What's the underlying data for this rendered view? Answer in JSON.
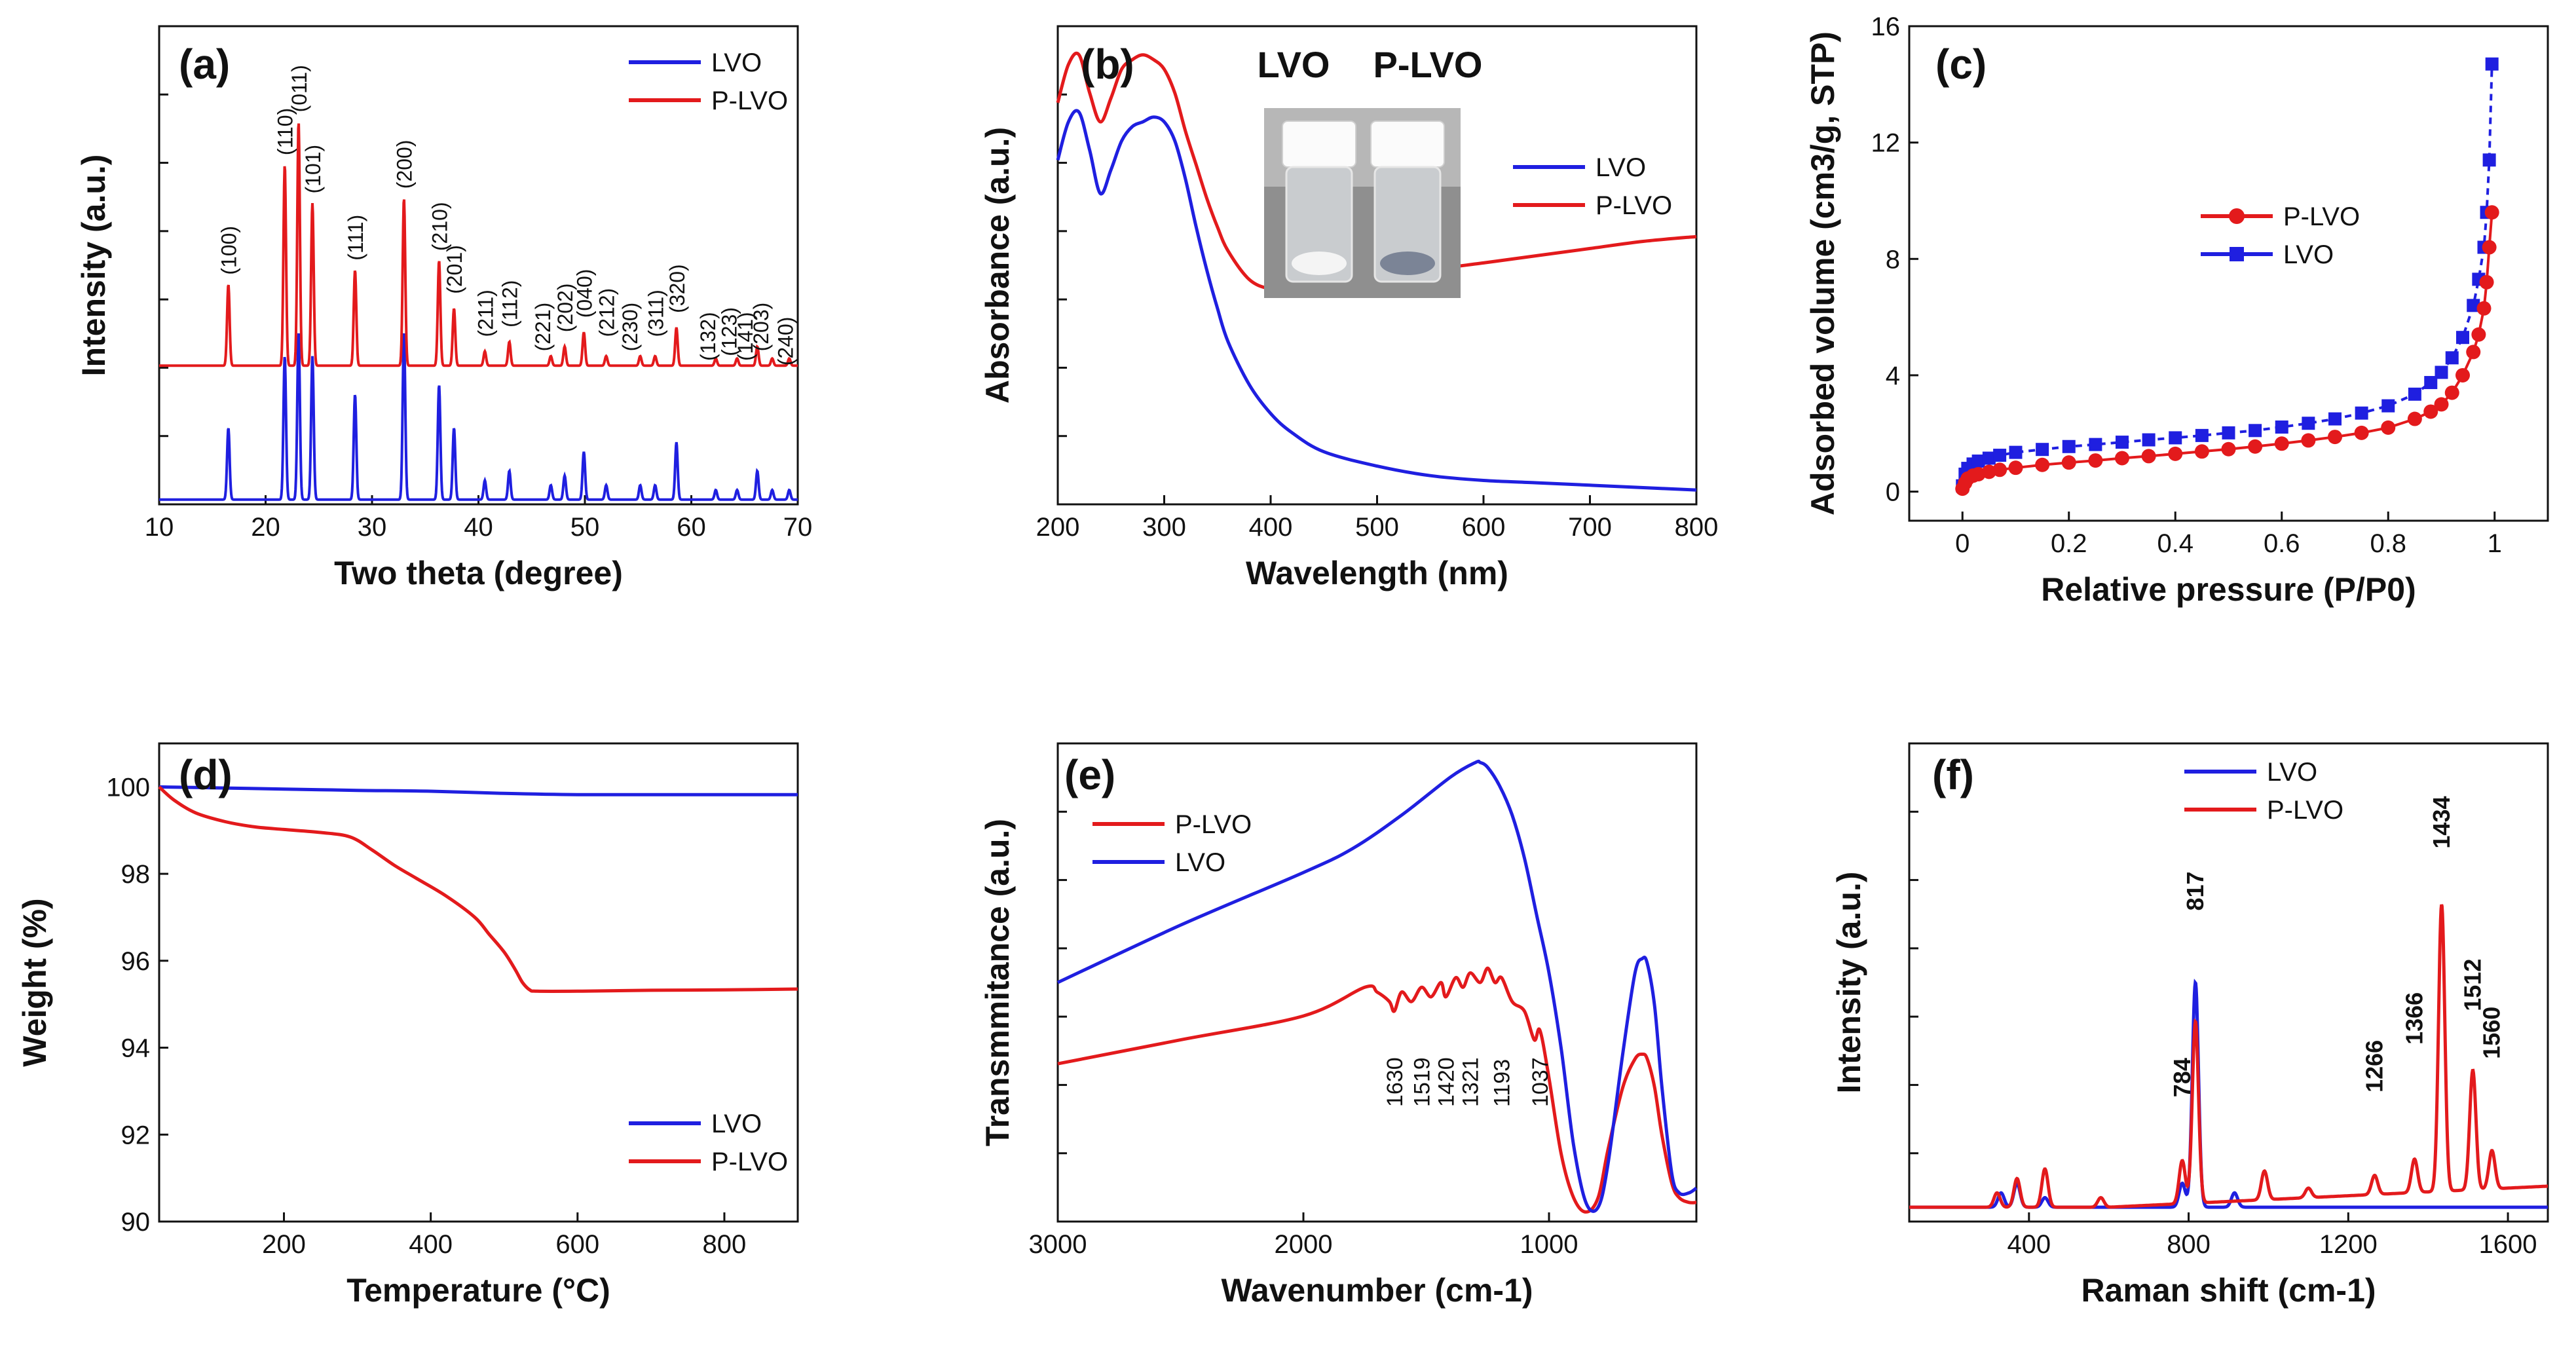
{
  "figure": {
    "panels": [
      {
        "id": "a",
        "label": "(a)"
      },
      {
        "id": "b",
        "label": "(b)"
      },
      {
        "id": "c",
        "label": "(c)"
      },
      {
        "id": "d",
        "label": "(d)"
      },
      {
        "id": "e",
        "label": "(e)"
      },
      {
        "id": "f",
        "label": "(f)"
      }
    ],
    "photo_labels": [
      "LVO",
      "P-LVO"
    ]
  },
  "colors": {
    "LVO": "#1f1fe0",
    "P-LVO": "#e31a1c",
    "axis": "#111111"
  },
  "chart_data": [
    {
      "id": "a",
      "type": "line",
      "title": "",
      "xlabel": "Two theta (degree)",
      "ylabel": "Intensity (a.u.)",
      "xlim": [
        10,
        70
      ],
      "ylim": [
        0,
        100
      ],
      "xticks": [
        10,
        20,
        30,
        40,
        50,
        60,
        70
      ],
      "yticks": [],
      "legend": "top-right",
      "series": [
        {
          "name": "LVO",
          "color": "#1f1fe0",
          "baseline": 1,
          "peaks": [
            [
              16.5,
              15
            ],
            [
              21.8,
              30
            ],
            [
              23.1,
              35
            ],
            [
              24.4,
              30
            ],
            [
              28.4,
              22
            ],
            [
              33.0,
              35
            ],
            [
              36.3,
              24
            ],
            [
              37.7,
              15
            ],
            [
              40.6,
              4
            ],
            [
              42.9,
              6
            ],
            [
              46.8,
              3
            ],
            [
              48.1,
              5
            ],
            [
              49.9,
              10
            ],
            [
              52.0,
              3
            ],
            [
              55.2,
              3
            ],
            [
              56.6,
              3
            ],
            [
              58.6,
              12
            ],
            [
              62.3,
              2
            ],
            [
              64.3,
              2
            ],
            [
              66.2,
              6
            ],
            [
              67.6,
              2
            ],
            [
              69.2,
              2
            ]
          ]
        },
        {
          "name": "P-LVO",
          "color": "#e31a1c",
          "baseline": 29,
          "peaks": [
            [
              16.5,
              17
            ],
            [
              21.8,
              42
            ],
            [
              23.1,
              51
            ],
            [
              24.4,
              34
            ],
            [
              28.4,
              20
            ],
            [
              33.0,
              35
            ],
            [
              36.3,
              22
            ],
            [
              37.7,
              12
            ],
            [
              40.6,
              3
            ],
            [
              42.9,
              5
            ],
            [
              46.8,
              2
            ],
            [
              48.1,
              4
            ],
            [
              49.9,
              7
            ],
            [
              52.0,
              2
            ],
            [
              55.2,
              2
            ],
            [
              56.6,
              2
            ],
            [
              58.6,
              8
            ],
            [
              62.3,
              1.5
            ],
            [
              64.3,
              1.5
            ],
            [
              66.2,
              4
            ],
            [
              67.6,
              1.5
            ],
            [
              69.2,
              1.5
            ]
          ]
        }
      ],
      "annotations": [
        {
          "text": "(100)",
          "x": 16.5,
          "y": 48
        },
        {
          "text": "(110)",
          "x": 21.8,
          "y": 73
        },
        {
          "text": "(011)",
          "x": 23.1,
          "y": 82
        },
        {
          "text": "(101)",
          "x": 24.4,
          "y": 65
        },
        {
          "text": "(111)",
          "x": 28.4,
          "y": 51
        },
        {
          "text": "(200)",
          "x": 33.0,
          "y": 66
        },
        {
          "text": "(210)",
          "x": 36.3,
          "y": 53
        },
        {
          "text": "(201)",
          "x": 37.7,
          "y": 44
        },
        {
          "text": "(211)",
          "x": 40.6,
          "y": 35
        },
        {
          "text": "(112)",
          "x": 42.9,
          "y": 37
        },
        {
          "text": "(221)",
          "x": 46.0,
          "y": 32
        },
        {
          "text": "(202)",
          "x": 48.1,
          "y": 36
        },
        {
          "text": "(040)",
          "x": 49.9,
          "y": 39
        },
        {
          "text": "(212)",
          "x": 52.0,
          "y": 35
        },
        {
          "text": "(230)",
          "x": 54.2,
          "y": 32
        },
        {
          "text": "(311)",
          "x": 56.6,
          "y": 35
        },
        {
          "text": "(320)",
          "x": 58.6,
          "y": 40
        },
        {
          "text": "(132)",
          "x": 61.5,
          "y": 30
        },
        {
          "text": "(123)",
          "x": 63.5,
          "y": 31
        },
        {
          "text": "(141)",
          "x": 65.0,
          "y": 30
        },
        {
          "text": "(203)",
          "x": 66.5,
          "y": 32
        },
        {
          "text": "(240)",
          "x": 68.8,
          "y": 29
        }
      ]
    },
    {
      "id": "b",
      "type": "line",
      "title": "",
      "xlabel": "Wavelength (nm)",
      "ylabel": "Absorbance (a.u.)",
      "xlim": [
        200,
        800
      ],
      "ylim": [
        0,
        100
      ],
      "xticks": [
        200,
        300,
        400,
        500,
        600,
        700,
        800
      ],
      "yticks": [],
      "legend": "right",
      "series": [
        {
          "name": "LVO",
          "color": "#1f1fe0",
          "x": [
            200,
            210,
            220,
            230,
            240,
            250,
            260,
            270,
            280,
            290,
            300,
            310,
            320,
            330,
            340,
            350,
            360,
            380,
            400,
            420,
            450,
            500,
            550,
            600,
            650,
            700,
            750,
            800
          ],
          "y": [
            72,
            80,
            82,
            74,
            65,
            70,
            76,
            79,
            80,
            81,
            80,
            76,
            68,
            58,
            49,
            41,
            34,
            25,
            19,
            15,
            11,
            8,
            6,
            5,
            4.5,
            4,
            3.5,
            3
          ]
        },
        {
          "name": "P-LVO",
          "color": "#e31a1c",
          "x": [
            200,
            210,
            220,
            230,
            240,
            250,
            260,
            270,
            280,
            290,
            300,
            310,
            320,
            330,
            340,
            350,
            360,
            380,
            400,
            420,
            450,
            500,
            550,
            600,
            650,
            700,
            750,
            800
          ],
          "y": [
            84,
            92,
            94,
            86,
            80,
            85,
            91,
            93,
            94,
            93,
            91,
            86,
            78,
            71,
            64,
            58,
            53,
            47,
            45,
            44.5,
            45,
            47,
            49,
            50.5,
            52,
            53.5,
            55,
            56
          ]
        }
      ]
    },
    {
      "id": "c",
      "type": "scatter",
      "title": "",
      "xlabel": "Relative pressure (P/P0)",
      "ylabel": "Adsorbed volume (cm3/g, STP)",
      "xlim": [
        -0.1,
        1.1
      ],
      "ylim": [
        -1,
        16
      ],
      "xticks": [
        0.0,
        0.2,
        0.4,
        0.6,
        0.8,
        1.0
      ],
      "yticks": [
        0,
        4,
        8,
        12,
        16
      ],
      "legend": "center-right",
      "series": [
        {
          "name": "P-LVO",
          "color": "#e31a1c",
          "marker": "circle",
          "x": [
            0.0,
            0.005,
            0.01,
            0.02,
            0.03,
            0.05,
            0.07,
            0.1,
            0.15,
            0.2,
            0.25,
            0.3,
            0.35,
            0.4,
            0.45,
            0.5,
            0.55,
            0.6,
            0.65,
            0.7,
            0.75,
            0.8,
            0.85,
            0.88,
            0.9,
            0.92,
            0.94,
            0.96,
            0.97,
            0.98,
            0.985,
            0.99,
            0.995
          ],
          "y": [
            0.1,
            0.3,
            0.45,
            0.55,
            0.6,
            0.68,
            0.75,
            0.82,
            0.92,
            1.0,
            1.07,
            1.15,
            1.22,
            1.3,
            1.38,
            1.46,
            1.55,
            1.65,
            1.76,
            1.88,
            2.02,
            2.2,
            2.5,
            2.75,
            3.0,
            3.4,
            4.0,
            4.8,
            5.4,
            6.3,
            7.2,
            8.4,
            9.6
          ]
        },
        {
          "name": "LVO",
          "color": "#1f1fe0",
          "marker": "square",
          "x": [
            0.0,
            0.005,
            0.01,
            0.02,
            0.03,
            0.05,
            0.07,
            0.1,
            0.15,
            0.2,
            0.25,
            0.3,
            0.35,
            0.4,
            0.45,
            0.5,
            0.55,
            0.6,
            0.65,
            0.7,
            0.75,
            0.8,
            0.85,
            0.88,
            0.9,
            0.92,
            0.94,
            0.96,
            0.97,
            0.98,
            0.985,
            0.99,
            0.995
          ],
          "y": [
            0.2,
            0.6,
            0.8,
            0.95,
            1.05,
            1.15,
            1.25,
            1.35,
            1.45,
            1.55,
            1.62,
            1.7,
            1.78,
            1.85,
            1.93,
            2.02,
            2.1,
            2.22,
            2.35,
            2.5,
            2.7,
            2.95,
            3.35,
            3.75,
            4.1,
            4.6,
            5.3,
            6.4,
            7.3,
            8.4,
            9.6,
            11.4,
            14.7
          ]
        }
      ]
    },
    {
      "id": "d",
      "type": "line",
      "title": "",
      "xlabel": "Temperature (°C)",
      "ylabel": "Weight (%)",
      "xlim": [
        30,
        900
      ],
      "ylim": [
        90,
        101
      ],
      "xticks": [
        200,
        400,
        600,
        800
      ],
      "yticks": [
        90,
        92,
        94,
        96,
        98,
        100
      ],
      "legend": "bottom-right",
      "series": [
        {
          "name": "LVO",
          "color": "#1f1fe0",
          "x": [
            30,
            100,
            200,
            300,
            400,
            500,
            600,
            700,
            800,
            900
          ],
          "y": [
            100.0,
            99.98,
            99.95,
            99.92,
            99.9,
            99.85,
            99.82,
            99.82,
            99.82,
            99.82
          ]
        },
        {
          "name": "P-LVO",
          "color": "#e31a1c",
          "x": [
            30,
            50,
            80,
            120,
            160,
            200,
            250,
            290,
            320,
            350,
            380,
            420,
            460,
            480,
            500,
            515,
            525,
            535,
            545,
            600,
            700,
            800,
            900
          ],
          "y": [
            100.0,
            99.7,
            99.4,
            99.2,
            99.08,
            99.02,
            98.95,
            98.85,
            98.55,
            98.2,
            97.9,
            97.5,
            97.0,
            96.6,
            96.2,
            95.8,
            95.5,
            95.33,
            95.3,
            95.3,
            95.32,
            95.33,
            95.35
          ]
        }
      ]
    },
    {
      "id": "e",
      "type": "line",
      "title": "",
      "xlabel": "Wavenumber (cm-1)",
      "ylabel": "Transmmitance (a.u.)",
      "xlim": [
        3000,
        400
      ],
      "ylim": [
        0,
        100
      ],
      "xticks": [
        3000,
        2000,
        1000
      ],
      "yticks": [],
      "legend": "top-left",
      "series": [
        {
          "name": "P-LVO",
          "color": "#e31a1c",
          "x": [
            3000,
            2500,
            2000,
            1750,
            1700,
            1650,
            1630,
            1600,
            1560,
            1519,
            1480,
            1440,
            1420,
            1380,
            1350,
            1321,
            1280,
            1250,
            1220,
            1193,
            1150,
            1100,
            1060,
            1037,
            1000,
            950,
            900,
            850,
            800,
            760,
            700,
            650,
            620,
            600,
            570,
            540,
            500,
            470,
            430,
            400
          ],
          "y": [
            33,
            38,
            43,
            49,
            48,
            46,
            44,
            48,
            46,
            49,
            47,
            50,
            47,
            51,
            49,
            52,
            50,
            53,
            50,
            51,
            46,
            44,
            38,
            40,
            30,
            14,
            5,
            2,
            5,
            15,
            28,
            34,
            35,
            34,
            28,
            18,
            8,
            5,
            4,
            4
          ]
        },
        {
          "name": "LVO",
          "color": "#1f1fe0",
          "x": [
            3000,
            2500,
            2000,
            1800,
            1600,
            1400,
            1300,
            1280,
            1250,
            1200,
            1150,
            1100,
            1050,
            1000,
            950,
            900,
            850,
            800,
            760,
            700,
            650,
            620,
            600,
            570,
            540,
            500,
            470,
            430,
            400
          ],
          "y": [
            50,
            62,
            73,
            78,
            85,
            93,
            96,
            96,
            95,
            91,
            85,
            76,
            64,
            52,
            36,
            16,
            4,
            3,
            12,
            35,
            52,
            55,
            54,
            45,
            28,
            10,
            6,
            6,
            7
          ]
        }
      ],
      "annotations": [
        {
          "text": "1630",
          "x": 1630
        },
        {
          "text": "1519",
          "x": 1519
        },
        {
          "text": "1420",
          "x": 1420
        },
        {
          "text": "1321",
          "x": 1321
        },
        {
          "text": "1193",
          "x": 1193
        },
        {
          "text": "1037",
          "x": 1037
        }
      ]
    },
    {
      "id": "f",
      "type": "line",
      "title": "",
      "xlabel": "Raman shift (cm-1)",
      "ylabel": "Intensity (a.u.)",
      "xlim": [
        100,
        1700
      ],
      "ylim": [
        0,
        100
      ],
      "xticks": [
        400,
        800,
        1200,
        1600
      ],
      "yticks": [],
      "legend": "top-left",
      "series": [
        {
          "name": "LVO",
          "color": "#1f1fe0",
          "baseline": 3,
          "peaks": [
            [
              330,
              3
            ],
            [
              370,
              5
            ],
            [
              440,
              2
            ],
            [
              784,
              5
            ],
            [
              817,
              47
            ],
            [
              915,
              3
            ]
          ]
        },
        {
          "name": "P-LVO",
          "color": "#e31a1c",
          "baseline": 3,
          "peaks": [
            [
              320,
              3
            ],
            [
              370,
              6
            ],
            [
              440,
              8
            ],
            [
              580,
              2
            ],
            [
              784,
              9
            ],
            [
              817,
              38
            ],
            [
              990,
              6
            ],
            [
              1100,
              2
            ],
            [
              1266,
              4
            ],
            [
              1366,
              7
            ],
            [
              1434,
              60
            ],
            [
              1512,
              25
            ],
            [
              1560,
              8
            ]
          ]
        }
      ],
      "annotations": [
        {
          "text": "784",
          "x": 784,
          "y": 26
        },
        {
          "text": "817",
          "x": 817,
          "y": 65
        },
        {
          "text": "1266",
          "x": 1266,
          "y": 27
        },
        {
          "text": "1366",
          "x": 1366,
          "y": 37
        },
        {
          "text": "1434",
          "x": 1434,
          "y": 78
        },
        {
          "text": "1512",
          "x": 1512,
          "y": 44
        },
        {
          "text": "1560",
          "x": 1560,
          "y": 34
        }
      ]
    }
  ]
}
